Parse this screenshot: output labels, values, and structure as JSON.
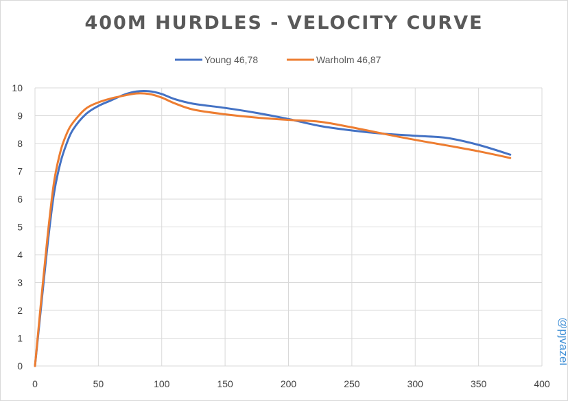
{
  "chart_data": {
    "type": "line",
    "title": "400M HURDLES - VELOCITY CURVE",
    "xlabel": "",
    "ylabel": "",
    "xlim": [
      0,
      400
    ],
    "ylim": [
      0,
      10
    ],
    "x_ticks": [
      0,
      50,
      100,
      150,
      200,
      250,
      300,
      350,
      400
    ],
    "y_ticks": [
      0,
      1,
      2,
      3,
      4,
      5,
      6,
      7,
      8,
      9,
      10
    ],
    "grid": true,
    "legend_position": "top",
    "watermark": "@pjvazel",
    "series": [
      {
        "name": "Young 46,78",
        "color": "#4472C4",
        "points": [
          [
            0,
            0
          ],
          [
            5,
            2.2
          ],
          [
            10,
            4.4
          ],
          [
            15,
            6.2
          ],
          [
            20,
            7.3
          ],
          [
            25,
            8.0
          ],
          [
            30,
            8.5
          ],
          [
            40,
            9.05
          ],
          [
            50,
            9.35
          ],
          [
            60,
            9.55
          ],
          [
            70,
            9.75
          ],
          [
            80,
            9.87
          ],
          [
            90,
            9.88
          ],
          [
            100,
            9.78
          ],
          [
            110,
            9.6
          ],
          [
            125,
            9.43
          ],
          [
            150,
            9.28
          ],
          [
            175,
            9.1
          ],
          [
            200,
            8.88
          ],
          [
            225,
            8.63
          ],
          [
            250,
            8.47
          ],
          [
            275,
            8.35
          ],
          [
            300,
            8.28
          ],
          [
            325,
            8.2
          ],
          [
            350,
            7.95
          ],
          [
            375,
            7.6
          ]
        ]
      },
      {
        "name": "Warholm 46,87",
        "color": "#ED7D31",
        "points": [
          [
            0,
            0
          ],
          [
            5,
            2.4
          ],
          [
            10,
            4.7
          ],
          [
            15,
            6.6
          ],
          [
            20,
            7.7
          ],
          [
            25,
            8.35
          ],
          [
            30,
            8.75
          ],
          [
            40,
            9.25
          ],
          [
            50,
            9.48
          ],
          [
            60,
            9.62
          ],
          [
            70,
            9.72
          ],
          [
            80,
            9.8
          ],
          [
            90,
            9.78
          ],
          [
            100,
            9.65
          ],
          [
            110,
            9.45
          ],
          [
            125,
            9.22
          ],
          [
            150,
            9.05
          ],
          [
            175,
            8.93
          ],
          [
            200,
            8.85
          ],
          [
            225,
            8.78
          ],
          [
            250,
            8.58
          ],
          [
            275,
            8.35
          ],
          [
            300,
            8.13
          ],
          [
            325,
            7.93
          ],
          [
            350,
            7.72
          ],
          [
            375,
            7.48
          ]
        ]
      }
    ]
  }
}
